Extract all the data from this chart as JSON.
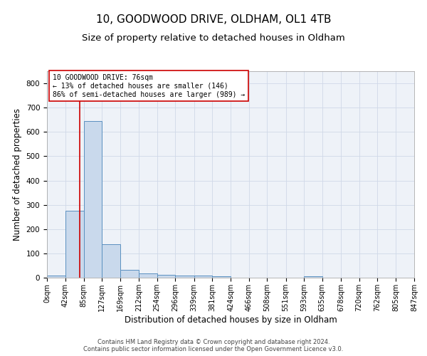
{
  "title": "10, GOODWOOD DRIVE, OLDHAM, OL1 4TB",
  "subtitle": "Size of property relative to detached houses in Oldham",
  "xlabel": "Distribution of detached houses by size in Oldham",
  "ylabel": "Number of detached properties",
  "footer_line1": "Contains HM Land Registry data © Crown copyright and database right 2024.",
  "footer_line2": "Contains public sector information licensed under the Open Government Licence v3.0.",
  "bin_edges": [
    0,
    42,
    85,
    127,
    169,
    212,
    254,
    296,
    339,
    381,
    424,
    466,
    508,
    551,
    593,
    635,
    678,
    720,
    762,
    805,
    847
  ],
  "bar_heights": [
    8,
    275,
    645,
    138,
    33,
    18,
    12,
    10,
    10,
    5,
    0,
    0,
    0,
    0,
    7,
    0,
    0,
    0,
    0,
    0
  ],
  "bar_color": "#c9d9ec",
  "bar_edge_color": "#5a90c0",
  "grid_color": "#d0d8e8",
  "bg_color": "#eef2f8",
  "property_size": 76,
  "vline_color": "#cc0000",
  "annotation_text": "10 GOODWOOD DRIVE: 76sqm\n← 13% of detached houses are smaller (146)\n86% of semi-detached houses are larger (989) →",
  "annotation_box_color": "#cc0000",
  "ylim": [
    0,
    850
  ],
  "yticks": [
    0,
    100,
    200,
    300,
    400,
    500,
    600,
    700,
    800
  ],
  "title_fontsize": 11,
  "subtitle_fontsize": 9.5,
  "tick_label_fontsize": 7,
  "ylabel_fontsize": 8.5,
  "xlabel_fontsize": 8.5,
  "annotation_fontsize": 7,
  "footer_fontsize": 6
}
